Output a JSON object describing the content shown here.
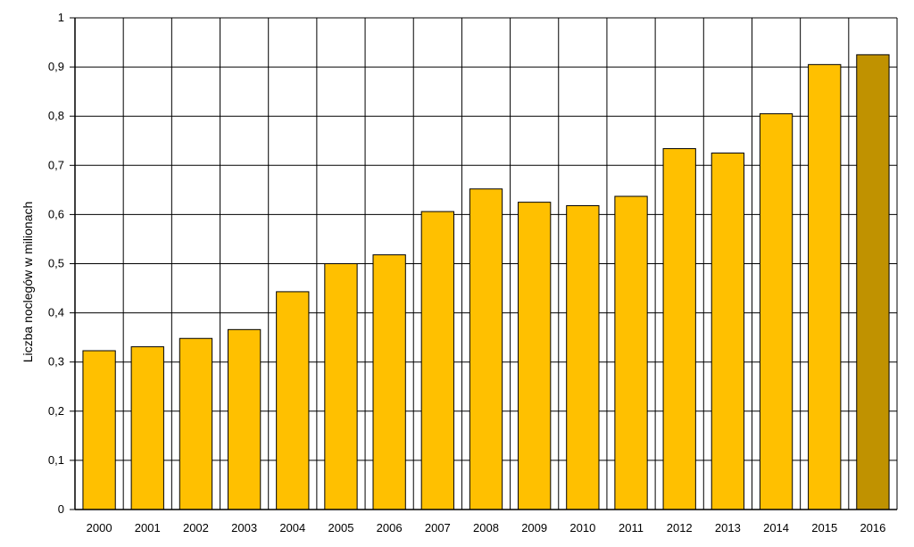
{
  "chart_data": {
    "type": "bar",
    "title": "",
    "xlabel": "",
    "ylabel": "Liczba noclegów w milionach",
    "categories": [
      "2000",
      "2001",
      "2002",
      "2003",
      "2004",
      "2005",
      "2006",
      "2007",
      "2008",
      "2009",
      "2010",
      "2011",
      "2012",
      "2013",
      "2014",
      "2015",
      "2016"
    ],
    "values": [
      0.323,
      0.331,
      0.348,
      0.366,
      0.443,
      0.5,
      0.518,
      0.606,
      0.652,
      0.625,
      0.618,
      0.637,
      0.734,
      0.725,
      0.805,
      0.905,
      0.925
    ],
    "ylim": [
      0,
      1
    ],
    "y_ticks": [
      0,
      0.1,
      0.2,
      0.3,
      0.4,
      0.5,
      0.6,
      0.7,
      0.8,
      0.9,
      1
    ],
    "y_tick_labels": [
      "0",
      "0,1",
      "0,2",
      "0,3",
      "0,4",
      "0,5",
      "0,6",
      "0,7",
      "0,8",
      "0,9",
      "1"
    ],
    "grid": true,
    "legend": "none",
    "bar_color": "#FFC000",
    "highlight_color": "#C09200",
    "highlight_category": "2016",
    "bar_outline_color": "#000000"
  }
}
